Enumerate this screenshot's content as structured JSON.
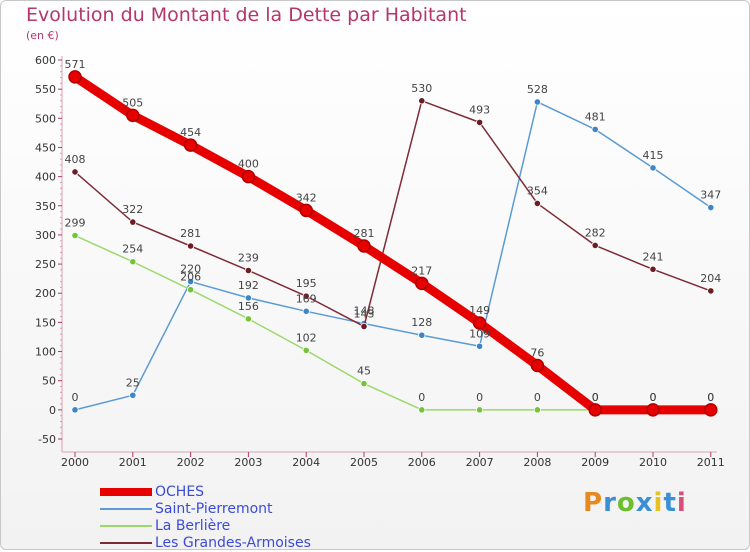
{
  "header": {
    "title": "Evolution du Montant de la Dette par Habitant",
    "subtitle": "(en €)"
  },
  "logo": {
    "text": "Proxiti",
    "letter_colors": [
      "#e8891f",
      "#3a8fd6",
      "#6bbf2d",
      "#3a8fd6",
      "#e8c21f",
      "#3a8fd6",
      "#d94e7a"
    ]
  },
  "chart_data": {
    "type": "line",
    "title": "Evolution du Montant de la Dette par Habitant",
    "subtitle": "(en €)",
    "x": [
      "2000",
      "2001",
      "2002",
      "2003",
      "2004",
      "2005",
      "2006",
      "2007",
      "2008",
      "2009",
      "2010",
      "2011"
    ],
    "ylim": [
      -50,
      600
    ],
    "yticks": [
      -50,
      0,
      50,
      100,
      150,
      200,
      250,
      300,
      350,
      400,
      450,
      500,
      550,
      600
    ],
    "grid": false,
    "legend_position": "bottom-left",
    "series": [
      {
        "name": "OCHES",
        "color": "#e60000",
        "marker_color": "#e60000",
        "bold": true,
        "values": [
          571,
          505,
          454,
          400,
          342,
          281,
          217,
          149,
          76,
          0,
          0,
          0
        ]
      },
      {
        "name": "Saint-Pierremont",
        "color": "#5b9bd5",
        "marker_color": "#3f84c4",
        "bold": false,
        "values": [
          0,
          25,
          220,
          192,
          169,
          148,
          128,
          109,
          528,
          481,
          415,
          347
        ]
      },
      {
        "name": "La Berlière",
        "color": "#9ad96a",
        "marker_color": "#74c43a",
        "bold": false,
        "values": [
          299,
          254,
          206,
          156,
          102,
          45,
          0,
          0,
          0,
          0,
          0,
          0
        ]
      },
      {
        "name": "Les Grandes-Armoises",
        "color": "#7d2b35",
        "marker_color": "#6b1c24",
        "bold": false,
        "values": [
          408,
          322,
          281,
          239,
          195,
          143,
          530,
          493,
          354,
          282,
          241,
          204
        ]
      }
    ]
  }
}
